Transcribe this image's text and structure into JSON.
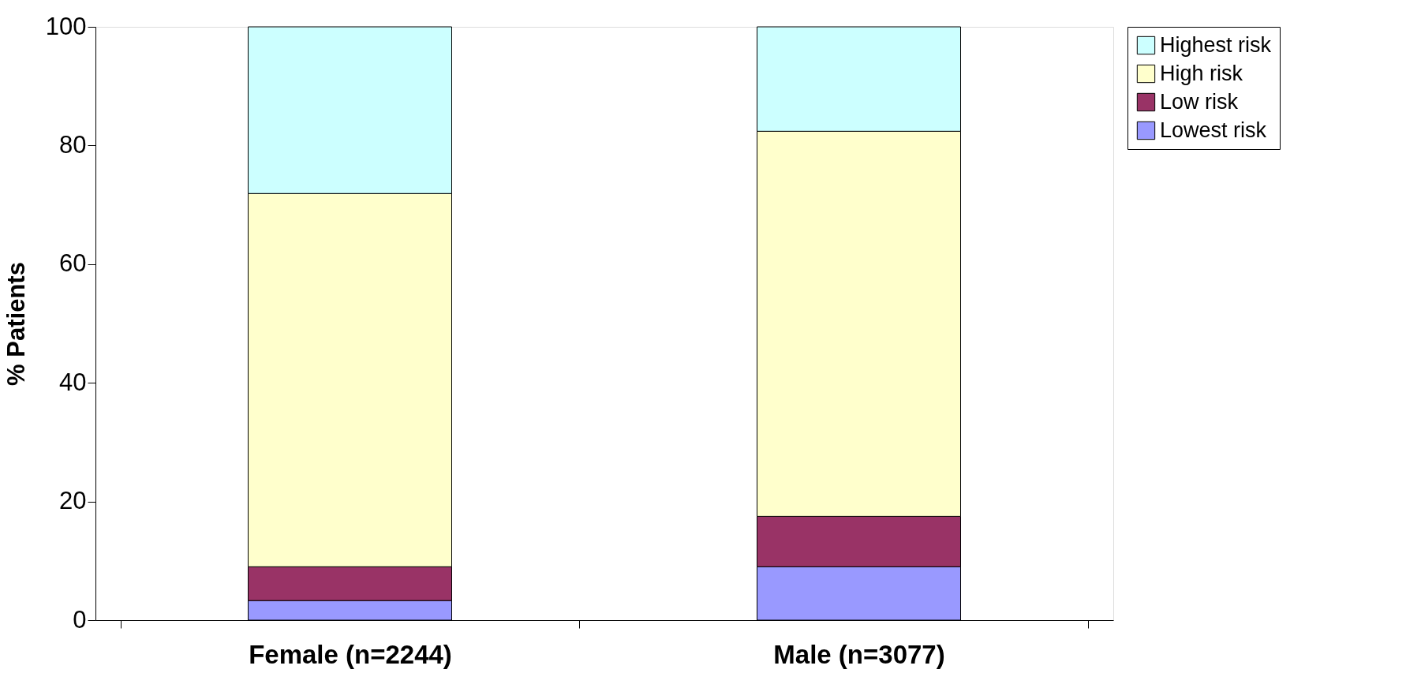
{
  "chart_data": {
    "type": "bar",
    "stacked": true,
    "ylabel": "% Patients",
    "categories": [
      "Female (n=2244)",
      "Male (n=3077)"
    ],
    "series": [
      {
        "name": "Lowest risk",
        "color": "#9999ff",
        "values": [
          3.3,
          9.0
        ]
      },
      {
        "name": "Low risk",
        "color": "#993366",
        "values": [
          5.7,
          8.5
        ]
      },
      {
        "name": "High risk",
        "color": "#ffffcc",
        "values": [
          62.9,
          64.9
        ]
      },
      {
        "name": "Highest risk",
        "color": "#ccffff",
        "values": [
          28.1,
          17.6
        ]
      }
    ],
    "ylim": [
      0,
      100
    ],
    "yticks": [
      0,
      20,
      40,
      60,
      80,
      100
    ],
    "grid": false,
    "legend": "right"
  }
}
